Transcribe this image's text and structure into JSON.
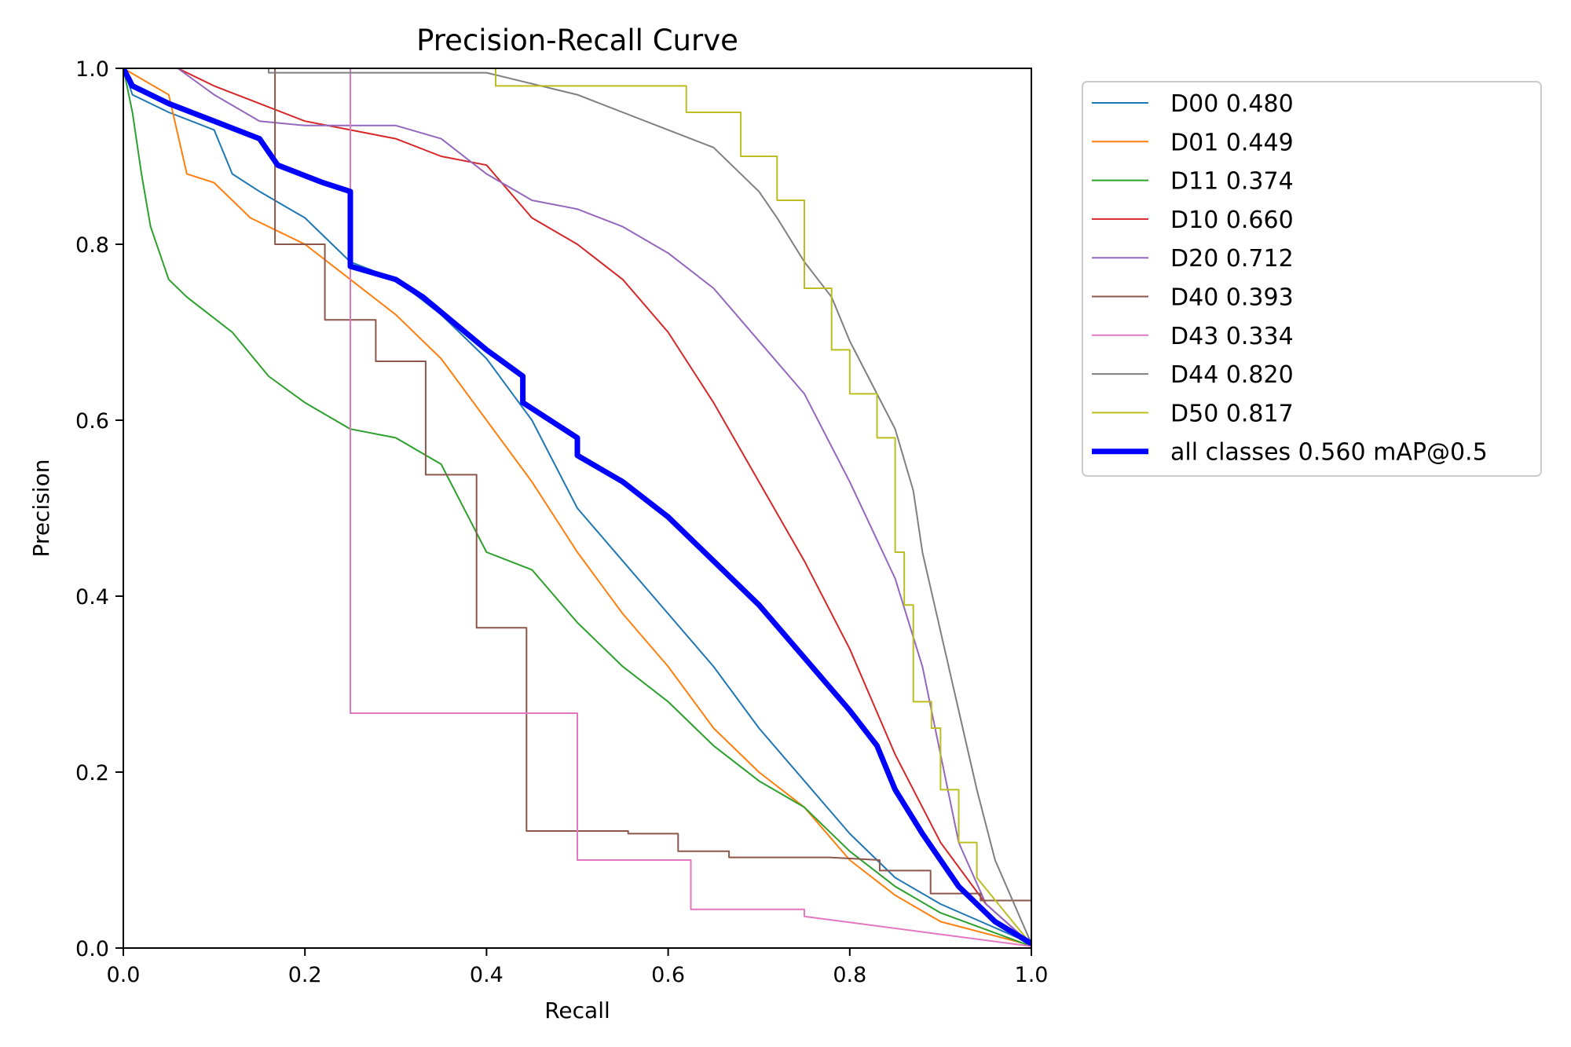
{
  "chart_data": {
    "type": "line",
    "title": "Precision-Recall Curve",
    "xlabel": "Recall",
    "ylabel": "Precision",
    "xlim": [
      0,
      1
    ],
    "ylim": [
      0,
      1
    ],
    "xticks": [
      "0.0",
      "0.2",
      "0.4",
      "0.6",
      "0.8",
      "1.0"
    ],
    "yticks": [
      "0.0",
      "0.2",
      "0.4",
      "0.6",
      "0.8",
      "1.0"
    ],
    "grid": false,
    "legend_position": "outside-right-top",
    "series": [
      {
        "name": "D00",
        "ap": "0.480",
        "label": "D00 0.480",
        "color": "#1f77b4",
        "width": 2,
        "points": [
          [
            0,
            1
          ],
          [
            0.01,
            0.97
          ],
          [
            0.05,
            0.95
          ],
          [
            0.1,
            0.93
          ],
          [
            0.12,
            0.88
          ],
          [
            0.15,
            0.86
          ],
          [
            0.2,
            0.83
          ],
          [
            0.25,
            0.78
          ],
          [
            0.3,
            0.76
          ],
          [
            0.35,
            0.72
          ],
          [
            0.4,
            0.67
          ],
          [
            0.45,
            0.6
          ],
          [
            0.5,
            0.5
          ],
          [
            0.55,
            0.44
          ],
          [
            0.6,
            0.38
          ],
          [
            0.65,
            0.32
          ],
          [
            0.7,
            0.25
          ],
          [
            0.75,
            0.19
          ],
          [
            0.8,
            0.13
          ],
          [
            0.85,
            0.08
          ],
          [
            0.9,
            0.05
          ],
          [
            1,
            0.005
          ]
        ]
      },
      {
        "name": "D01",
        "ap": "0.449",
        "label": "D01 0.449",
        "color": "#ff7f0e",
        "width": 2,
        "points": [
          [
            0,
            1
          ],
          [
            0.05,
            0.97
          ],
          [
            0.07,
            0.88
          ],
          [
            0.1,
            0.87
          ],
          [
            0.14,
            0.83
          ],
          [
            0.2,
            0.8
          ],
          [
            0.25,
            0.76
          ],
          [
            0.3,
            0.72
          ],
          [
            0.35,
            0.67
          ],
          [
            0.4,
            0.6
          ],
          [
            0.45,
            0.53
          ],
          [
            0.5,
            0.45
          ],
          [
            0.55,
            0.38
          ],
          [
            0.6,
            0.32
          ],
          [
            0.65,
            0.25
          ],
          [
            0.7,
            0.2
          ],
          [
            0.75,
            0.16
          ],
          [
            0.8,
            0.1
          ],
          [
            0.85,
            0.06
          ],
          [
            0.9,
            0.03
          ],
          [
            1,
            0.003
          ]
        ]
      },
      {
        "name": "D11",
        "ap": "0.374",
        "label": "D11 0.374",
        "color": "#2ca02c",
        "width": 2,
        "points": [
          [
            0,
            1
          ],
          [
            0.01,
            0.95
          ],
          [
            0.02,
            0.88
          ],
          [
            0.03,
            0.82
          ],
          [
            0.05,
            0.76
          ],
          [
            0.07,
            0.74
          ],
          [
            0.12,
            0.7
          ],
          [
            0.16,
            0.65
          ],
          [
            0.2,
            0.62
          ],
          [
            0.25,
            0.59
          ],
          [
            0.3,
            0.58
          ],
          [
            0.35,
            0.55
          ],
          [
            0.4,
            0.45
          ],
          [
            0.45,
            0.43
          ],
          [
            0.5,
            0.37
          ],
          [
            0.55,
            0.32
          ],
          [
            0.6,
            0.28
          ],
          [
            0.65,
            0.23
          ],
          [
            0.7,
            0.19
          ],
          [
            0.75,
            0.16
          ],
          [
            0.8,
            0.11
          ],
          [
            0.85,
            0.07
          ],
          [
            0.9,
            0.04
          ],
          [
            1,
            0.002
          ]
        ]
      },
      {
        "name": "D10",
        "ap": "0.660",
        "label": "D10 0.660",
        "color": "#d62728",
        "width": 2,
        "points": [
          [
            0.06,
            1
          ],
          [
            0.1,
            0.98
          ],
          [
            0.15,
            0.96
          ],
          [
            0.2,
            0.94
          ],
          [
            0.25,
            0.93
          ],
          [
            0.3,
            0.92
          ],
          [
            0.35,
            0.9
          ],
          [
            0.4,
            0.89
          ],
          [
            0.45,
            0.83
          ],
          [
            0.5,
            0.8
          ],
          [
            0.55,
            0.76
          ],
          [
            0.6,
            0.7
          ],
          [
            0.65,
            0.62
          ],
          [
            0.7,
            0.53
          ],
          [
            0.75,
            0.44
          ],
          [
            0.8,
            0.34
          ],
          [
            0.85,
            0.22
          ],
          [
            0.9,
            0.12
          ],
          [
            0.95,
            0.05
          ],
          [
            1,
            0.004
          ]
        ]
      },
      {
        "name": "D20",
        "ap": "0.712",
        "label": "D20 0.712",
        "color": "#9467bd",
        "width": 2,
        "points": [
          [
            0.06,
            1
          ],
          [
            0.1,
            0.97
          ],
          [
            0.15,
            0.94
          ],
          [
            0.2,
            0.935
          ],
          [
            0.3,
            0.935
          ],
          [
            0.35,
            0.92
          ],
          [
            0.4,
            0.88
          ],
          [
            0.45,
            0.85
          ],
          [
            0.5,
            0.84
          ],
          [
            0.55,
            0.82
          ],
          [
            0.6,
            0.79
          ],
          [
            0.65,
            0.75
          ],
          [
            0.7,
            0.69
          ],
          [
            0.75,
            0.63
          ],
          [
            0.8,
            0.53
          ],
          [
            0.85,
            0.42
          ],
          [
            0.88,
            0.32
          ],
          [
            0.9,
            0.22
          ],
          [
            0.92,
            0.12
          ],
          [
            0.95,
            0.05
          ],
          [
            1,
            0.004
          ]
        ]
      },
      {
        "name": "D40",
        "ap": "0.393",
        "label": "D40 0.393",
        "color": "#8c564b",
        "width": 2,
        "points": [
          [
            0.167,
            1
          ],
          [
            0.167,
            0.8
          ],
          [
            0.222,
            0.8
          ],
          [
            0.222,
            0.714
          ],
          [
            0.278,
            0.714
          ],
          [
            0.278,
            0.667
          ],
          [
            0.333,
            0.667
          ],
          [
            0.333,
            0.538
          ],
          [
            0.389,
            0.538
          ],
          [
            0.389,
            0.364
          ],
          [
            0.444,
            0.364
          ],
          [
            0.444,
            0.133
          ],
          [
            0.5,
            0.133
          ],
          [
            0.556,
            0.133
          ],
          [
            0.556,
            0.13
          ],
          [
            0.611,
            0.13
          ],
          [
            0.611,
            0.11
          ],
          [
            0.667,
            0.11
          ],
          [
            0.667,
            0.103
          ],
          [
            0.778,
            0.103
          ],
          [
            0.833,
            0.1
          ],
          [
            0.833,
            0.088
          ],
          [
            0.889,
            0.088
          ],
          [
            0.889,
            0.062
          ],
          [
            0.944,
            0.062
          ],
          [
            0.944,
            0.054
          ],
          [
            1,
            0.054
          ],
          [
            1,
            0.003
          ]
        ]
      },
      {
        "name": "D43",
        "ap": "0.334",
        "label": "D43 0.334",
        "color": "#e377c2",
        "width": 2,
        "points": [
          [
            0.25,
            1
          ],
          [
            0.25,
            0.267
          ],
          [
            0.5,
            0.267
          ],
          [
            0.5,
            0.1
          ],
          [
            0.625,
            0.1
          ],
          [
            0.625,
            0.044
          ],
          [
            0.75,
            0.044
          ],
          [
            0.75,
            0.036
          ],
          [
            1,
            0.002
          ]
        ]
      },
      {
        "name": "D44",
        "ap": "0.820",
        "label": "D44 0.820",
        "color": "#7f7f7f",
        "width": 2,
        "points": [
          [
            0.16,
            1
          ],
          [
            0.16,
            0.995
          ],
          [
            0.4,
            0.995
          ],
          [
            0.5,
            0.97
          ],
          [
            0.55,
            0.95
          ],
          [
            0.6,
            0.93
          ],
          [
            0.65,
            0.91
          ],
          [
            0.7,
            0.86
          ],
          [
            0.72,
            0.83
          ],
          [
            0.75,
            0.78
          ],
          [
            0.78,
            0.74
          ],
          [
            0.8,
            0.69
          ],
          [
            0.82,
            0.65
          ],
          [
            0.85,
            0.59
          ],
          [
            0.87,
            0.52
          ],
          [
            0.88,
            0.45
          ],
          [
            0.9,
            0.36
          ],
          [
            0.92,
            0.27
          ],
          [
            0.94,
            0.18
          ],
          [
            0.96,
            0.1
          ],
          [
            1,
            0.005
          ]
        ]
      },
      {
        "name": "D50",
        "ap": "0.817",
        "label": "D50 0.817",
        "color": "#bcbd22",
        "width": 2,
        "points": [
          [
            0.41,
            1
          ],
          [
            0.41,
            0.98
          ],
          [
            0.62,
            0.98
          ],
          [
            0.62,
            0.95
          ],
          [
            0.68,
            0.95
          ],
          [
            0.68,
            0.9
          ],
          [
            0.72,
            0.9
          ],
          [
            0.72,
            0.85
          ],
          [
            0.75,
            0.85
          ],
          [
            0.75,
            0.75
          ],
          [
            0.78,
            0.75
          ],
          [
            0.78,
            0.68
          ],
          [
            0.8,
            0.68
          ],
          [
            0.8,
            0.63
          ],
          [
            0.83,
            0.63
          ],
          [
            0.83,
            0.58
          ],
          [
            0.85,
            0.58
          ],
          [
            0.85,
            0.45
          ],
          [
            0.86,
            0.45
          ],
          [
            0.86,
            0.39
          ],
          [
            0.87,
            0.39
          ],
          [
            0.87,
            0.28
          ],
          [
            0.89,
            0.28
          ],
          [
            0.89,
            0.25
          ],
          [
            0.9,
            0.25
          ],
          [
            0.9,
            0.18
          ],
          [
            0.92,
            0.18
          ],
          [
            0.92,
            0.12
          ],
          [
            0.94,
            0.12
          ],
          [
            0.94,
            0.08
          ],
          [
            1,
            0.004
          ]
        ]
      },
      {
        "name": "all classes",
        "ap": "0.560",
        "label": "all classes 0.560 mAP@0.5",
        "color": "#0000ff",
        "width": 7,
        "points": [
          [
            0,
            1
          ],
          [
            0.01,
            0.98
          ],
          [
            0.05,
            0.96
          ],
          [
            0.1,
            0.94
          ],
          [
            0.15,
            0.92
          ],
          [
            0.17,
            0.89
          ],
          [
            0.22,
            0.87
          ],
          [
            0.25,
            0.86
          ],
          [
            0.25,
            0.775
          ],
          [
            0.3,
            0.76
          ],
          [
            0.33,
            0.74
          ],
          [
            0.4,
            0.68
          ],
          [
            0.44,
            0.65
          ],
          [
            0.44,
            0.62
          ],
          [
            0.5,
            0.58
          ],
          [
            0.5,
            0.56
          ],
          [
            0.55,
            0.53
          ],
          [
            0.6,
            0.49
          ],
          [
            0.65,
            0.44
          ],
          [
            0.7,
            0.39
          ],
          [
            0.75,
            0.33
          ],
          [
            0.8,
            0.27
          ],
          [
            0.83,
            0.23
          ],
          [
            0.85,
            0.18
          ],
          [
            0.88,
            0.13
          ],
          [
            0.92,
            0.07
          ],
          [
            0.96,
            0.03
          ],
          [
            1,
            0.005
          ]
        ]
      }
    ]
  }
}
